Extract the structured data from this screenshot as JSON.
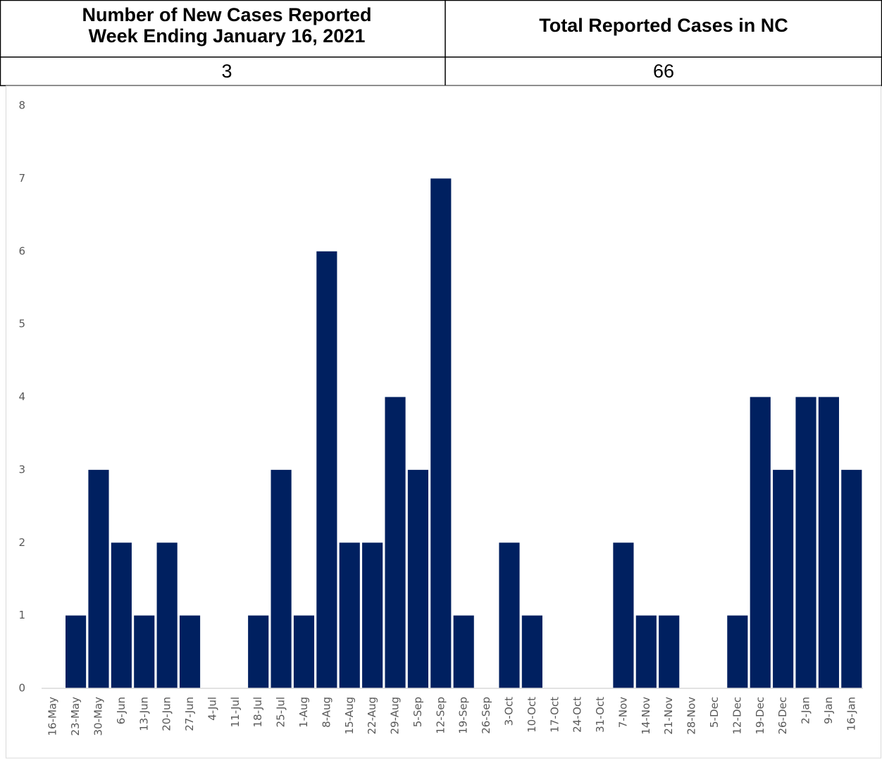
{
  "table": {
    "headers": [
      {
        "lines": [
          "Number of New Cases Reported",
          "Week Ending January 16, 2021"
        ]
      },
      {
        "lines": [
          "Total Reported Cases in NC"
        ]
      }
    ],
    "values": [
      3,
      66
    ]
  },
  "chart_data": {
    "type": "bar",
    "categories": [
      "16-May",
      "23-May",
      "30-May",
      "6-Jun",
      "13-Jun",
      "20-Jun",
      "27-Jun",
      "4-Jul",
      "11-Jul",
      "18-Jul",
      "25-Jul",
      "1-Aug",
      "8-Aug",
      "15-Aug",
      "22-Aug",
      "29-Aug",
      "5-Sep",
      "12-Sep",
      "19-Sep",
      "26-Sep",
      "3-Oct",
      "10-Oct",
      "17-Oct",
      "24-Oct",
      "31-Oct",
      "7-Nov",
      "14-Nov",
      "21-Nov",
      "28-Nov",
      "5-Dec",
      "12-Dec",
      "19-Dec",
      "26-Dec",
      "2-Jan",
      "9-Jan",
      "16-Jan"
    ],
    "values": [
      0,
      1,
      3,
      2,
      1,
      2,
      1,
      0,
      0,
      1,
      3,
      1,
      6,
      2,
      2,
      4,
      3,
      7,
      1,
      0,
      2,
      1,
      0,
      0,
      0,
      2,
      1,
      1,
      0,
      0,
      1,
      4,
      3,
      4,
      4,
      3
    ],
    "color": "#002060",
    "ylim": [
      0,
      8
    ],
    "yticks": [
      0,
      1,
      2,
      3,
      4,
      5,
      6,
      7,
      8
    ],
    "grid": false
  }
}
